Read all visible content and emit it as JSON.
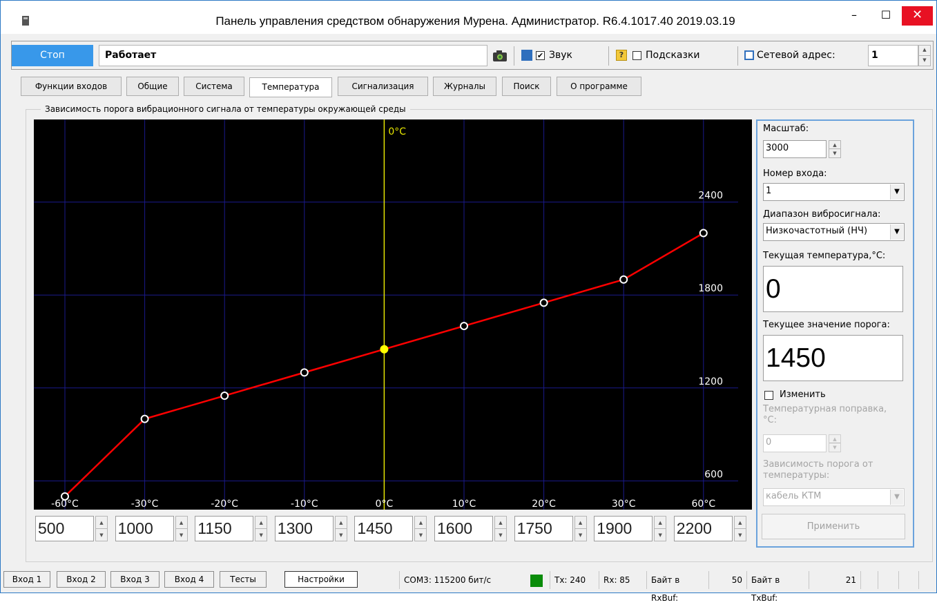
{
  "window": {
    "title": "Панель управления средством обнаружения Мурена. Администратор. R6.4.1017.40 2019.03.19",
    "min_glyph": "–",
    "max_glyph": "☐",
    "close_glyph": "✕"
  },
  "toolbar": {
    "stop_label": "Стоп",
    "status_text": "Работает",
    "sound_checked": true,
    "sound_label": "Звук",
    "hints_checked": false,
    "hints_label": "Подсказки",
    "address_label": "Сетевой адрес:",
    "address_value": "1",
    "check_mark": "✔",
    "help_glyph": "?"
  },
  "tabs": [
    {
      "label": "Функции входов"
    },
    {
      "label": "Общие"
    },
    {
      "label": "Система"
    },
    {
      "label": "Температура"
    },
    {
      "label": "Сигнализация"
    },
    {
      "label": "Журналы"
    },
    {
      "label": "Поиск"
    },
    {
      "label": "О программе"
    }
  ],
  "active_tab": "Температура",
  "group_title": "Зависимость порога вибрационного сигнала от температуры окружающей среды",
  "chart_data": {
    "type": "line",
    "title": "",
    "zero_marker_label": "0°C",
    "categories": [
      "-60°C",
      "-30°C",
      "-20°C",
      "-10°C",
      "0°C",
      "10°C",
      "20°C",
      "30°C",
      "60°C"
    ],
    "values": [
      500,
      1000,
      1150,
      1300,
      1450,
      1600,
      1750,
      1900,
      2200
    ],
    "y_ticks": [
      600,
      1200,
      1800,
      2400
    ],
    "ylim": [
      0,
      3000
    ],
    "grid": true,
    "highlighted_point": "0°C",
    "colors": {
      "background": "#000000",
      "grid": "#1a1a8c",
      "line": "#ff0000",
      "zero_line": "#e6e600",
      "highlight": "#ffff00",
      "marker": "#ffffff"
    }
  },
  "threshold_inputs": [
    "500",
    "1000",
    "1150",
    "1300",
    "1450",
    "1600",
    "1750",
    "1900",
    "2200"
  ],
  "side": {
    "scale_label": "Масштаб:",
    "scale_value": "3000",
    "input_label": "Номер входа:",
    "input_value": "1",
    "range_label": "Диапазон вибросигнала:",
    "range_value": "Низкочастотный (НЧ)",
    "cur_temp_label": "Текущая температура,°C:",
    "cur_temp_value": "0",
    "cur_threshold_label": "Текущее значение порога:",
    "cur_threshold_value": "1450",
    "change_label": "Изменить",
    "correction_label": "Температурная поправка, °C:",
    "correction_value": "0",
    "dependency_label": "Зависимость порога от температуры:",
    "dependency_value": "кабель КТМ",
    "apply_label": "Применить",
    "combo_arrow": "▼"
  },
  "bottom_tabs": [
    {
      "label": "Вход 1"
    },
    {
      "label": "Вход 2"
    },
    {
      "label": "Вход 3"
    },
    {
      "label": "Вход 4"
    },
    {
      "label": "Тесты"
    },
    {
      "label": "Настройки"
    }
  ],
  "status": {
    "port": "COM3: 115200 бит/с",
    "tx": "Tx: 240",
    "rx": "Rx: 85",
    "rxbuf_label": "Байт в RxBuf:",
    "rxbuf_value": "50",
    "txbuf_label": "Байт в TxBuf:",
    "txbuf_value": "21"
  }
}
